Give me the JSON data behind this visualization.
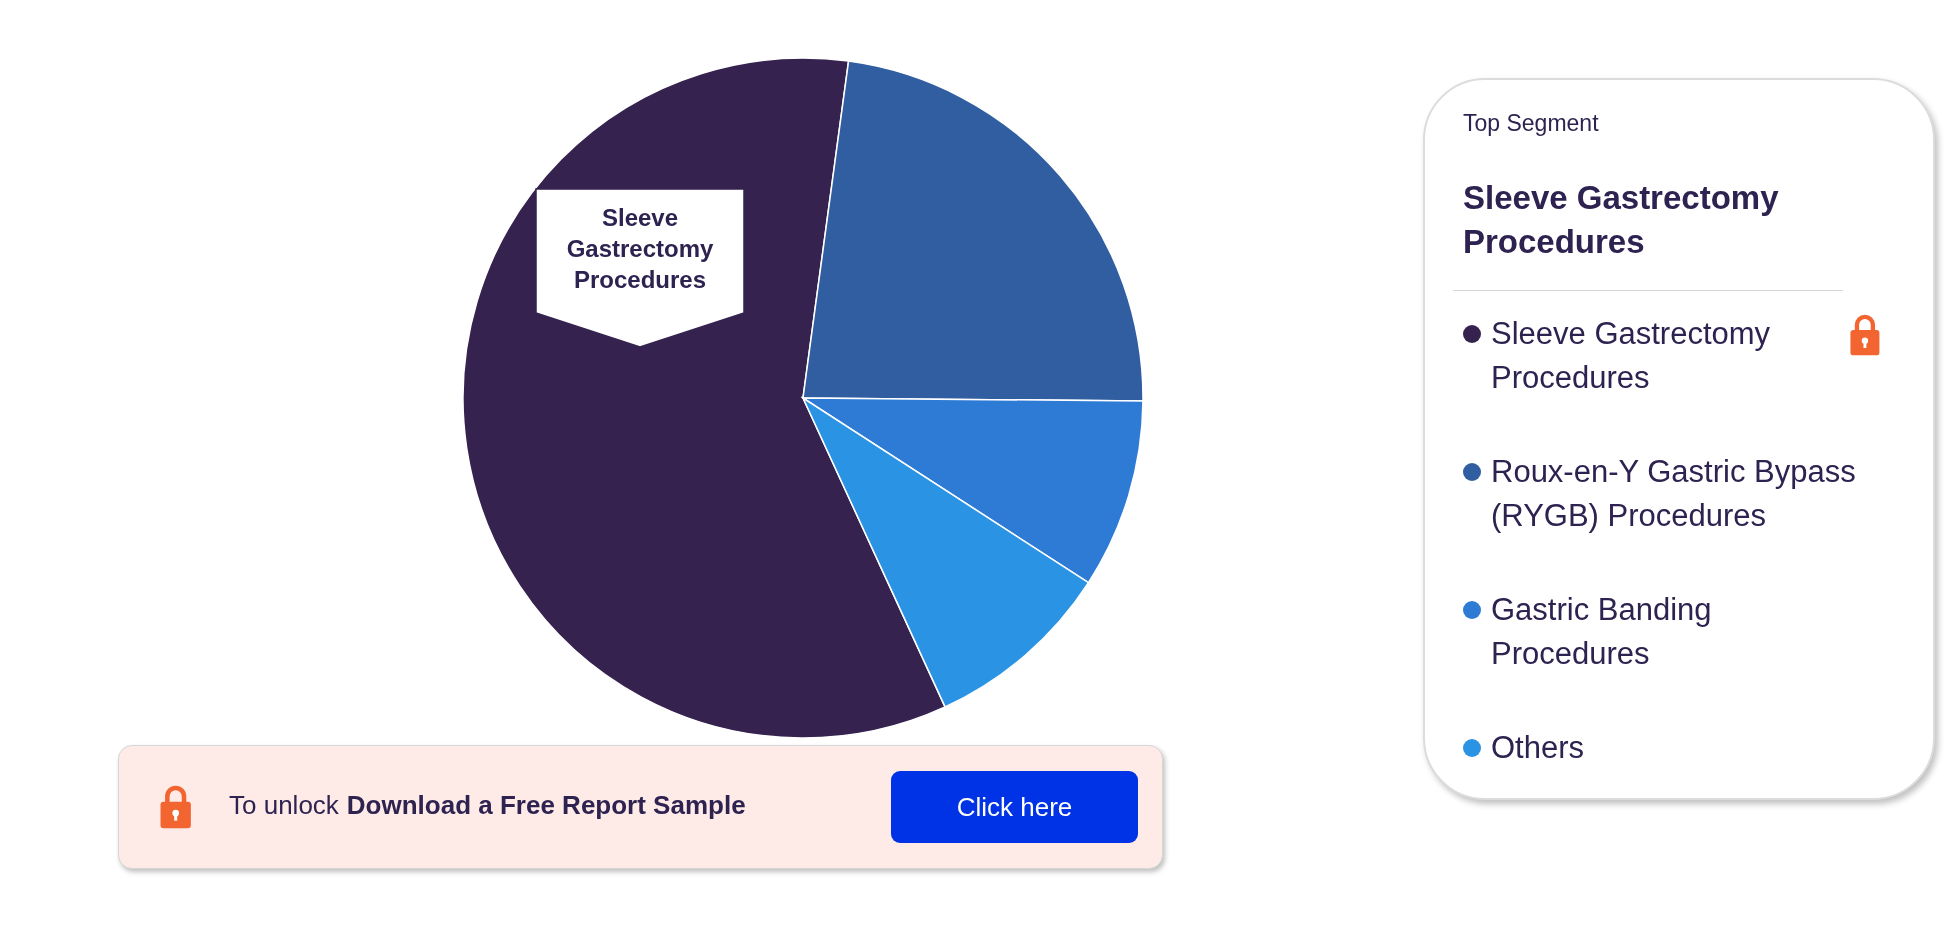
{
  "chart_data": {
    "type": "pie",
    "categories": [
      "Sleeve Gastrectomy Procedures",
      "Roux-en-Y Gastric Bypass (RYGB) Procedures",
      "Gastric Banding Procedures",
      "Others"
    ],
    "values": [
      59,
      23,
      9,
      9
    ],
    "colors": [
      "#35224f",
      "#305ea0",
      "#2e7bd6",
      "#2a93e3"
    ],
    "legend": "right",
    "annotations": [
      "Sleeve Gastrectomy Procedures",
      "Top Segment",
      "Sleeve Gastrectomy Procedures",
      "To unlock",
      "Download a Free Report Sample",
      "Click here"
    ]
  }
}
